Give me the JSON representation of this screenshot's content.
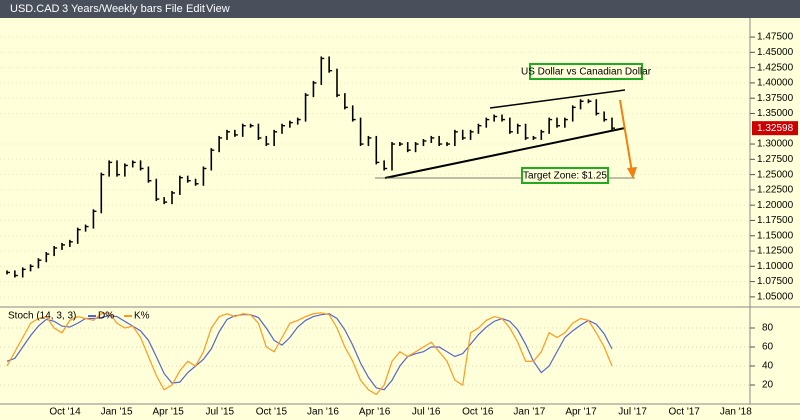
{
  "window": {
    "symbol": "USD.CAD",
    "period": "3 Years/Weekly bars",
    "menu": [
      "File",
      "Edit",
      "View"
    ]
  },
  "chart_data": [
    {
      "type": "bar",
      "title": "USD.CAD",
      "annotations": [
        "US Dollar vs Canadian Dollar",
        "Target Zone: $1.25"
      ],
      "xticks_labels": [
        "Oct '14",
        "Jan '15",
        "Apr '15",
        "Jul '15",
        "Oct '15",
        "Jan '16",
        "Apr '16",
        "Jul '16",
        "Oct '16",
        "Jan '17",
        "Apr '17",
        "Jul '17",
        "Oct '17",
        "Jan '18"
      ],
      "series": [
        {
          "name": "USD.CAD",
          "color": "#000000",
          "values": [
            1.09,
            1.085,
            1.095,
            1.1,
            1.11,
            1.12,
            1.13,
            1.135,
            1.14,
            1.16,
            1.165,
            1.19,
            1.25,
            1.27,
            1.25,
            1.265,
            1.27,
            1.26,
            1.24,
            1.21,
            1.205,
            1.22,
            1.245,
            1.24,
            1.235,
            1.26,
            1.29,
            1.31,
            1.32,
            1.315,
            1.33,
            1.33,
            1.31,
            1.3,
            1.32,
            1.33,
            1.335,
            1.34,
            1.38,
            1.4,
            1.44,
            1.42,
            1.38,
            1.36,
            1.34,
            1.3,
            1.31,
            1.27,
            1.26,
            1.3,
            1.3,
            1.29,
            1.3,
            1.305,
            1.31,
            1.3,
            1.3,
            1.32,
            1.31,
            1.32,
            1.33,
            1.34,
            1.345,
            1.34,
            1.32,
            1.33,
            1.31,
            1.31,
            1.32,
            1.34,
            1.33,
            1.34,
            1.36,
            1.37,
            1.37,
            1.35,
            1.34,
            1.32598
          ]
        }
      ],
      "ylim": [
        1.04,
        1.48
      ],
      "yticks": [
        {
          "value": 1.05,
          "label": "1.05000"
        },
        {
          "value": 1.075,
          "label": "1.07500"
        },
        {
          "value": 1.1,
          "label": "1.10000"
        },
        {
          "value": 1.125,
          "label": "1.12500"
        },
        {
          "value": 1.15,
          "label": "1.15000"
        },
        {
          "value": 1.175,
          "label": "1.17500"
        },
        {
          "value": 1.2,
          "label": "1.20000"
        },
        {
          "value": 1.225,
          "label": "1.22500"
        },
        {
          "value": 1.25,
          "label": "1.25000"
        },
        {
          "value": 1.275,
          "label": "1.27500"
        },
        {
          "value": 1.3,
          "label": "1.30000"
        },
        {
          "value": 1.35,
          "label": "1.35000"
        },
        {
          "value": 1.375,
          "label": "1.37500"
        },
        {
          "value": 1.4,
          "label": "1.40000"
        },
        {
          "value": 1.425,
          "label": "1.42500"
        },
        {
          "value": 1.45,
          "label": "1.45000"
        },
        {
          "value": 1.475,
          "label": "1.47500"
        }
      ],
      "last_color": "#cc0000"
    },
    {
      "type": "line",
      "title": "Stoch (14, 3, 3)",
      "series": [
        {
          "name": "D%",
          "color": "#5566cc",
          "values": [
            45,
            48,
            60,
            72,
            82,
            89,
            87,
            82,
            81,
            85,
            90,
            90,
            91,
            93,
            92,
            87,
            82,
            77,
            67,
            50,
            32,
            22,
            23,
            33,
            40,
            47,
            58,
            76,
            89,
            93,
            94,
            94,
            91,
            80,
            67,
            62,
            70,
            81,
            88,
            92,
            94,
            95,
            90,
            78,
            62,
            43,
            28,
            17,
            15,
            25,
            40,
            50,
            53,
            55,
            60,
            60,
            55,
            50,
            53,
            63,
            73,
            81,
            87,
            90,
            87,
            78,
            63,
            45,
            33,
            40,
            55,
            70,
            77,
            83,
            88,
            84,
            74,
            58
          ]
        },
        {
          "name": "K%",
          "color": "#ff9922",
          "values": [
            40,
            55,
            70,
            85,
            90,
            92,
            80,
            75,
            88,
            92,
            90,
            88,
            95,
            96,
            85,
            80,
            82,
            70,
            50,
            30,
            15,
            20,
            35,
            45,
            40,
            55,
            80,
            92,
            95,
            92,
            95,
            94,
            85,
            60,
            55,
            70,
            85,
            88,
            92,
            95,
            96,
            94,
            80,
            60,
            45,
            25,
            15,
            10,
            20,
            45,
            55,
            50,
            55,
            60,
            65,
            55,
            45,
            25,
            20,
            75,
            80,
            88,
            92,
            90,
            80,
            65,
            45,
            45,
            55,
            75,
            70,
            75,
            85,
            90,
            88,
            75,
            60,
            40
          ]
        }
      ],
      "ylim": [
        0,
        100
      ],
      "yticks": [
        20,
        40,
        60,
        80
      ]
    }
  ]
}
